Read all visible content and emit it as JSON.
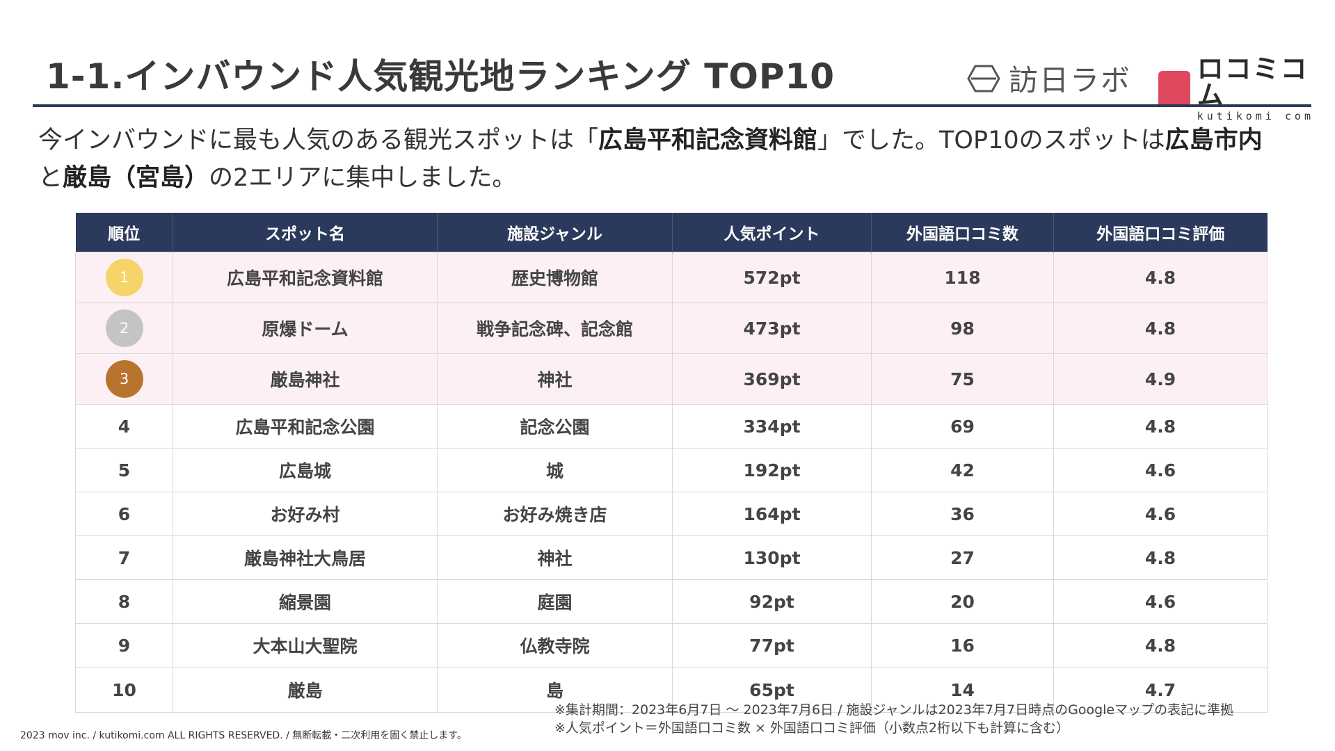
{
  "header": {
    "title": "1-1.インバウンド人気観光地ランキング TOP10",
    "logo_left": "訪日ラボ",
    "logo_right_jp": "ロコミコム",
    "logo_right_en": "kutikomi com"
  },
  "intro": {
    "p1": "今インバウンドに最も人気のある観光スポットは「",
    "b1": "広島平和記念資料館",
    "p2": "」でした。TOP10のスポットは",
    "b2": "広島市内",
    "p3": "と",
    "b3": "厳島（宮島）",
    "p4": "の2エリアに集中しました。"
  },
  "table": {
    "headers": [
      "順位",
      "スポット名",
      "施設ジャンル",
      "人気ポイント",
      "外国語口コミ数",
      "外国語口コミ評価"
    ],
    "rows": [
      {
        "rank": "1",
        "name": "広島平和記念資料館",
        "genre": "歴史博物館",
        "points": "572pt",
        "reviews": "118",
        "rating": "4.8"
      },
      {
        "rank": "2",
        "name": "原爆ドーム",
        "genre": "戦争記念碑、記念館",
        "points": "473pt",
        "reviews": "98",
        "rating": "4.8"
      },
      {
        "rank": "3",
        "name": "厳島神社",
        "genre": "神社",
        "points": "369pt",
        "reviews": "75",
        "rating": "4.9"
      },
      {
        "rank": "4",
        "name": "広島平和記念公園",
        "genre": "記念公園",
        "points": "334pt",
        "reviews": "69",
        "rating": "4.8"
      },
      {
        "rank": "5",
        "name": "広島城",
        "genre": "城",
        "points": "192pt",
        "reviews": "42",
        "rating": "4.6"
      },
      {
        "rank": "6",
        "name": "お好み村",
        "genre": "お好み焼き店",
        "points": "164pt",
        "reviews": "36",
        "rating": "4.6"
      },
      {
        "rank": "7",
        "name": "厳島神社大鳥居",
        "genre": "神社",
        "points": "130pt",
        "reviews": "27",
        "rating": "4.8"
      },
      {
        "rank": "8",
        "name": "縮景園",
        "genre": "庭園",
        "points": "92pt",
        "reviews": "20",
        "rating": "4.6"
      },
      {
        "rank": "9",
        "name": "大本山大聖院",
        "genre": "仏教寺院",
        "points": "77pt",
        "reviews": "16",
        "rating": "4.8"
      },
      {
        "rank": "10",
        "name": "厳島",
        "genre": "島",
        "points": "65pt",
        "reviews": "14",
        "rating": "4.7"
      }
    ]
  },
  "notes": {
    "n1": "※集計期間：2023年6月7日 〜 2023年7月6日 / 施設ジャンルは2023年7月7日時点のGoogleマップの表記に準拠",
    "n2": "※人気ポイント＝外国語口コミ数 × 外国語口コミ評価（小数点2桁以下も計算に含む）"
  },
  "footer": {
    "copyright": "2023 mov inc. / kutikomi.com ALL RIGHTS RESERVED. / 無断転載・二次利用を固く禁止します。"
  },
  "colors": {
    "header_bg": "#2b3a5c",
    "top3_row_bg": "#fdf0f4",
    "gold": "#f7d46a",
    "silver": "#c4c4c4",
    "bronze": "#b8742f",
    "logo_red": "#e0485f"
  }
}
